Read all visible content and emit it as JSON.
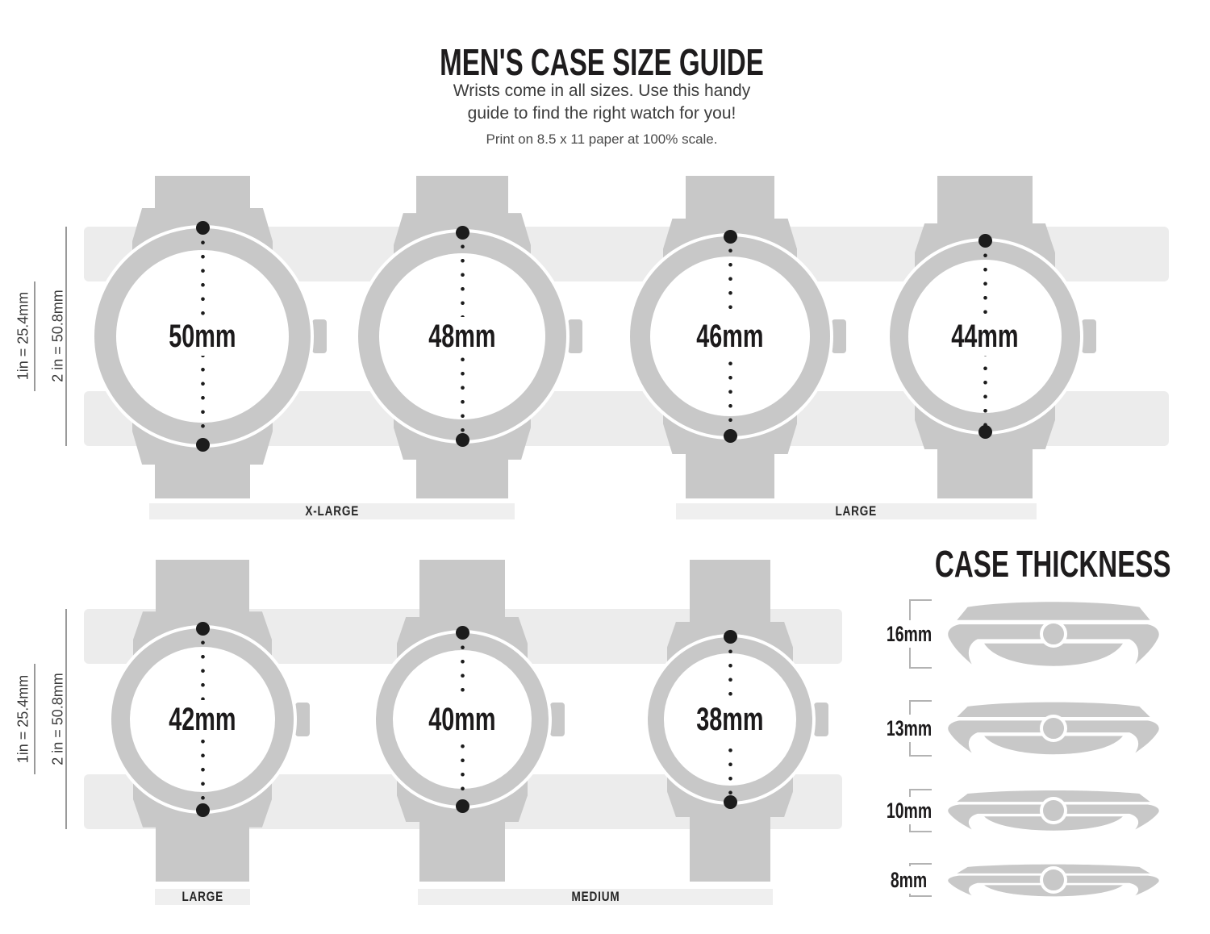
{
  "header": {
    "title": "MEN'S CASE SIZE GUIDE",
    "subtitle_line1": "Wrists come in all sizes. Use this handy",
    "subtitle_line2": "guide to find the right watch for you!",
    "print_note": "Print on 8.5 x 11 paper at 100% scale."
  },
  "scale_legend": {
    "one_inch": "1in = 25.4mm",
    "two_inch": "2 in = 50.8mm"
  },
  "size_rows": [
    {
      "watches": [
        {
          "label": "50mm",
          "mm": 50
        },
        {
          "label": "48mm",
          "mm": 48
        },
        {
          "label": "46mm",
          "mm": 46
        },
        {
          "label": "44mm",
          "mm": 44
        }
      ],
      "group_labels": [
        "X-LARGE",
        "LARGE"
      ]
    },
    {
      "watches": [
        {
          "label": "42mm",
          "mm": 42
        },
        {
          "label": "40mm",
          "mm": 40
        },
        {
          "label": "38mm",
          "mm": 38
        }
      ],
      "group_labels": [
        "LARGE",
        "MEDIUM"
      ]
    }
  ],
  "case_thickness": {
    "title": "CASE THICKNESS",
    "items": [
      {
        "label": "16mm",
        "mm": 16
      },
      {
        "label": "13mm",
        "mm": 13
      },
      {
        "label": "10mm",
        "mm": 10
      },
      {
        "label": "8mm",
        "mm": 8
      }
    ]
  },
  "colors": {
    "case_gray": "#c8c8c8",
    "band_gray": "#ececec",
    "label_bar_gray": "#efefef",
    "dot_black": "#1c1c1c",
    "measure_line_gray": "#9a9a9a",
    "bracket_gray": "#b3b3b3",
    "text_dark": "#1e1c1d"
  }
}
